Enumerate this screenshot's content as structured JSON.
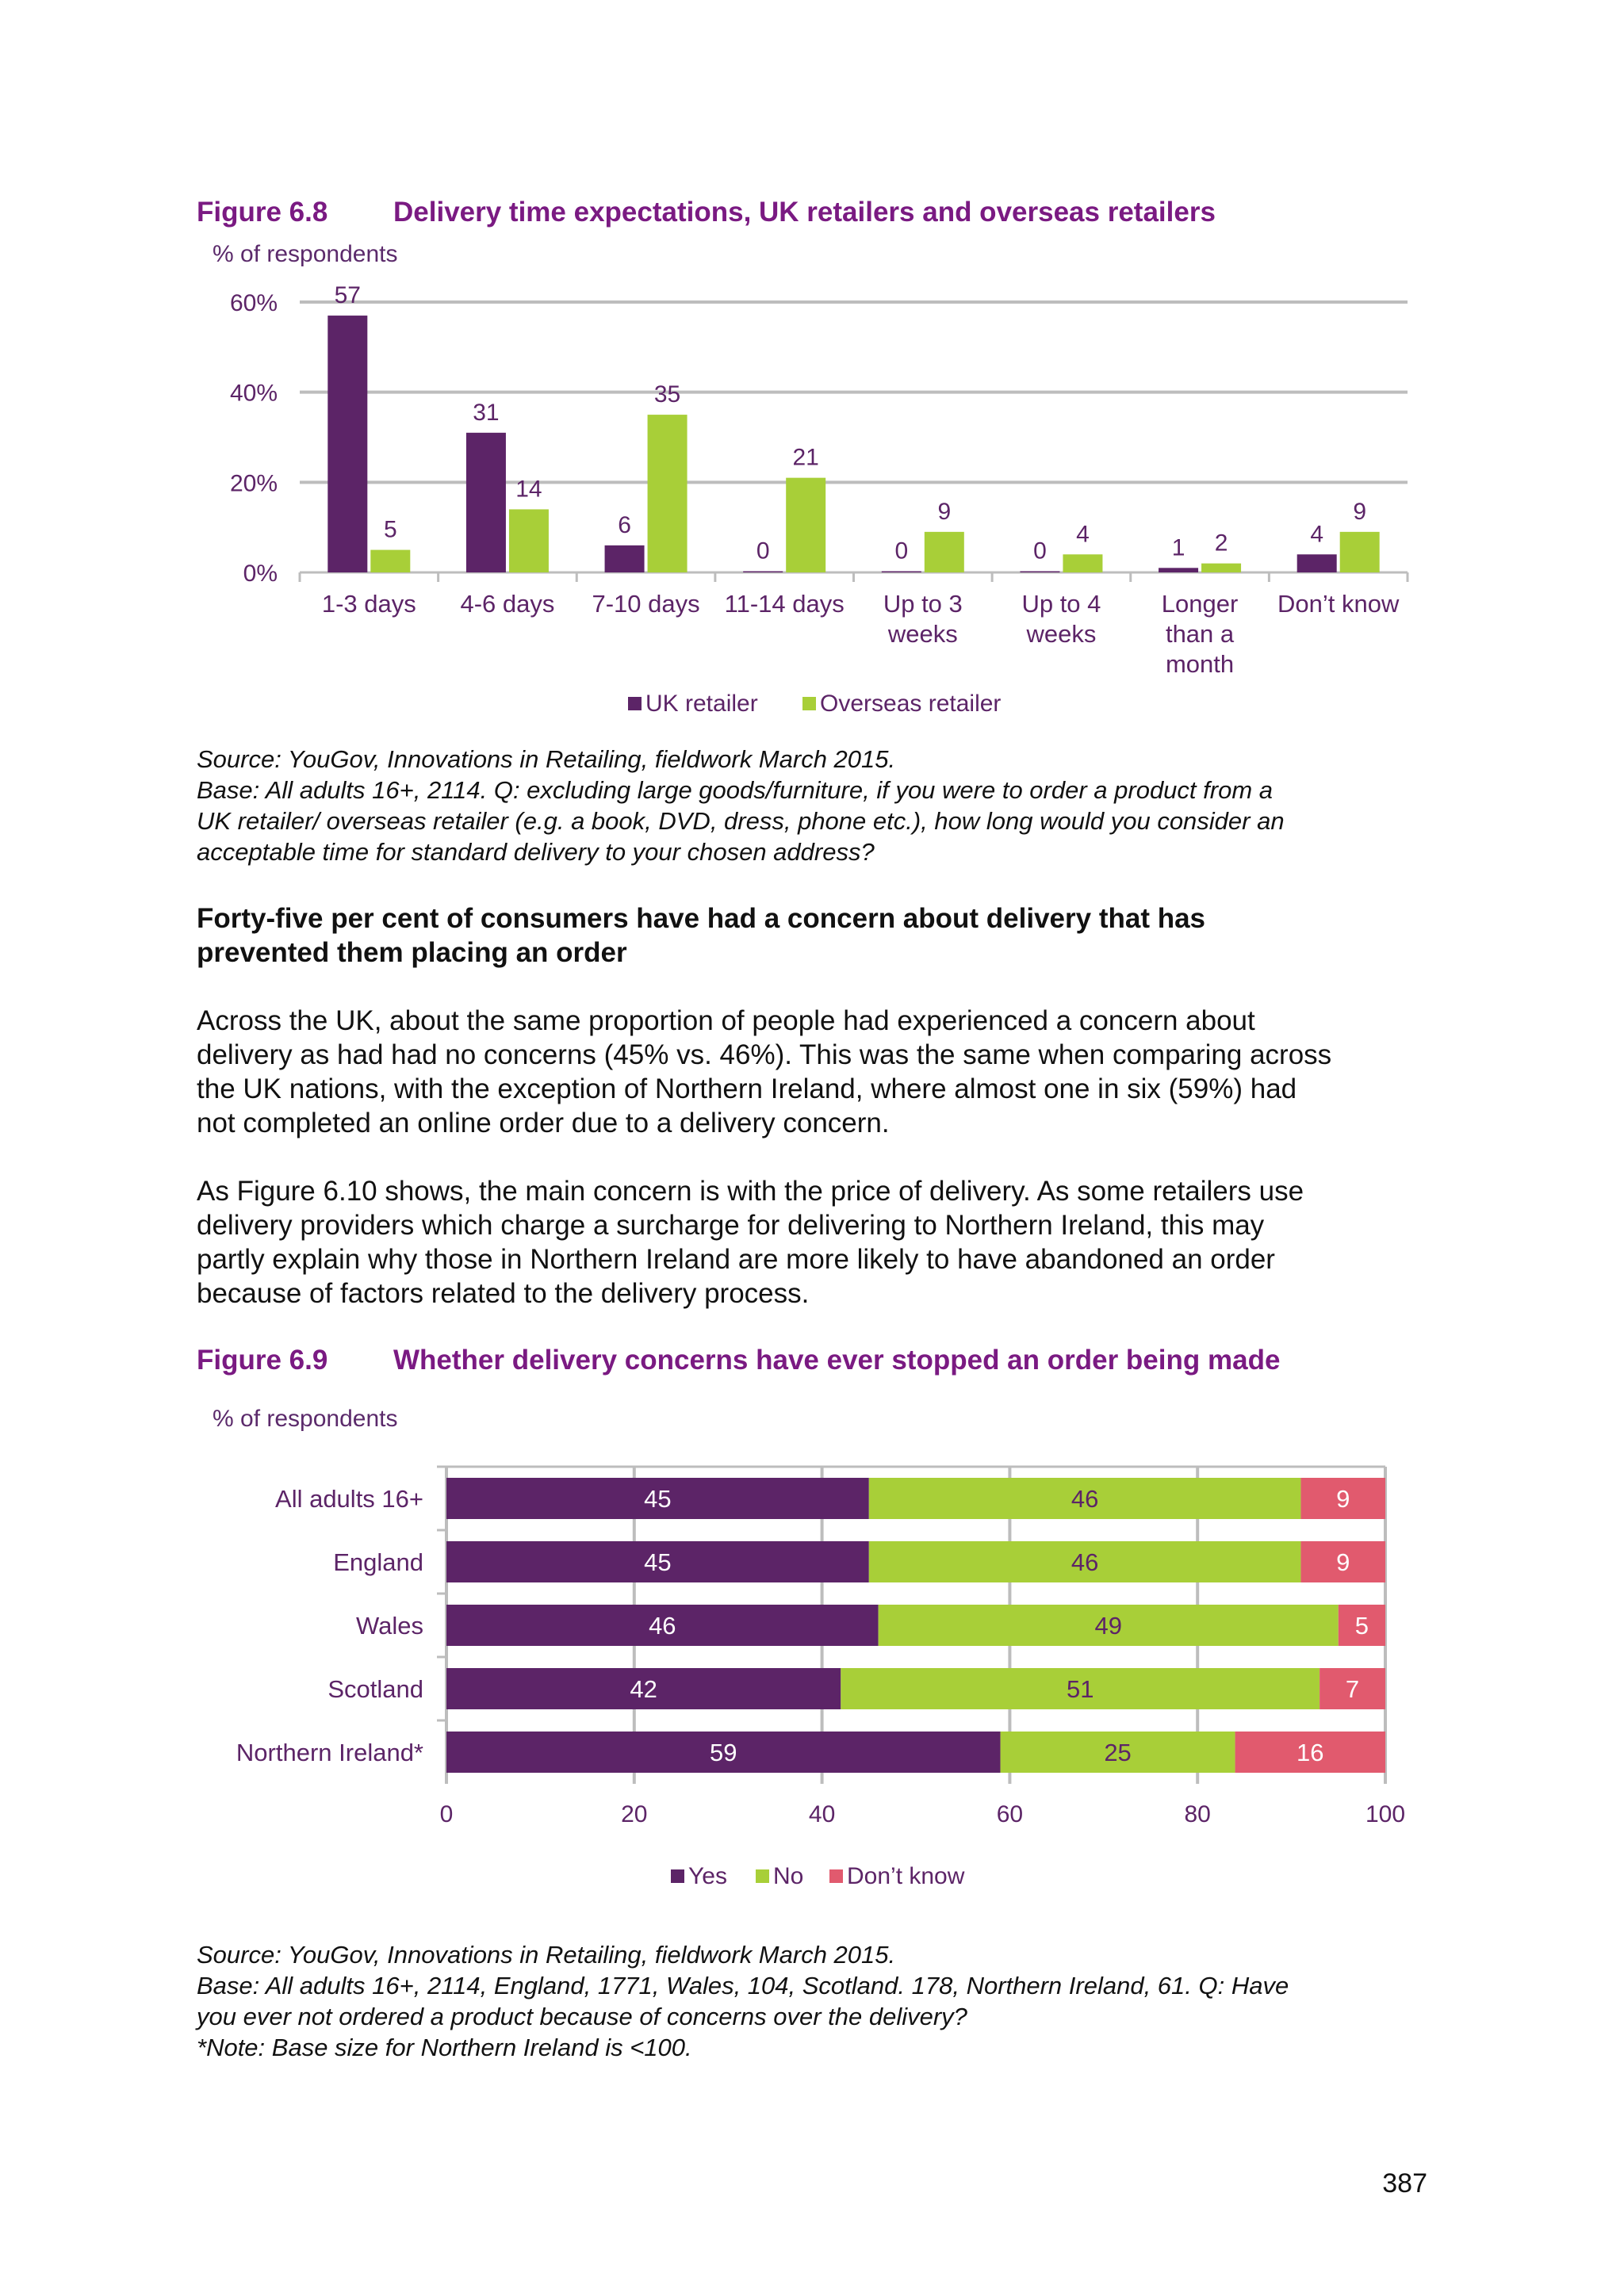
{
  "figure_6_8": {
    "number": "Figure 6.8",
    "title": "Delivery time expectations, UK retailers and overseas retailers",
    "unit": "% of respondents",
    "source": [
      "Source: YouGov, Innovations in Retailing, fieldwork March 2015.",
      "Base: All adults 16+, 2114. Q: excluding large goods/furniture, if you were to order a product from a",
      "UK retailer/ overseas retailer (e.g. a book, DVD, dress, phone etc.), how long would you consider an",
      "acceptable time for standard delivery to your chosen address?"
    ]
  },
  "section": {
    "heading": [
      "Forty-five per cent of consumers have had a concern about delivery that has",
      "prevented them placing an order"
    ],
    "paragraph1": [
      "Across the UK, about the same proportion of people had experienced a concern about",
      "delivery as had had no concerns (45% vs. 46%). This was the same when comparing across",
      "the UK nations, with the exception of Northern Ireland, where almost one in six (59%) had",
      "not completed an online order due to a delivery concern."
    ],
    "paragraph2": [
      "As Figure 6.10 shows, the main concern is with the price of delivery. As some retailers use",
      "delivery providers which charge a surcharge for delivering to Northern Ireland, this may",
      "partly explain why those in Northern Ireland are more likely to have abandoned an order",
      "because of factors related to the delivery process."
    ]
  },
  "figure_6_9": {
    "number": "Figure 6.9",
    "title": "Whether delivery concerns have ever stopped an order being made",
    "unit": "% of respondents",
    "source": [
      "Source: YouGov, Innovations in Retailing, fieldwork March 2015.",
      "Base: All adults 16+, 2114, England, 1771, Wales, 104, Scotland. 178, Northern Ireland, 61. Q: Have",
      "you ever not ordered a product because of concerns over the delivery?",
      "*Note: Base size for Northern Ireland is <100."
    ]
  },
  "page_number": "387",
  "chart_data": [
    {
      "type": "bar",
      "categories": [
        [
          "1-3 days"
        ],
        [
          "4-6 days"
        ],
        [
          "7-10 days"
        ],
        [
          "11-14 days"
        ],
        [
          "Up to 3",
          "weeks"
        ],
        [
          "Up to 4",
          "weeks"
        ],
        [
          "Longer",
          "than a",
          "month"
        ],
        [
          "Don’t know"
        ]
      ],
      "series": [
        {
          "name": "UK retailer",
          "color": "#5c2467",
          "values": [
            57,
            31,
            6,
            0,
            0,
            0,
            1,
            4
          ]
        },
        {
          "name": "Overseas retailer",
          "color": "#a8cf38",
          "values": [
            5,
            14,
            35,
            21,
            9,
            4,
            2,
            9
          ]
        }
      ],
      "ylim": [
        0,
        60
      ],
      "yticks": [
        "0%",
        "20%",
        "40%",
        "60%"
      ],
      "grid": true,
      "legend": "bottom",
      "label_color": "#5c2467"
    },
    {
      "type": "bar",
      "orientation": "horizontal",
      "stacked": true,
      "categories": [
        "All adults 16+",
        "England",
        "Wales",
        "Scotland",
        "Northern Ireland*"
      ],
      "series": [
        {
          "name": "Yes",
          "color": "#5c2467",
          "label_color": "#ffffff",
          "values": [
            45,
            45,
            46,
            42,
            59
          ]
        },
        {
          "name": "No",
          "color": "#a8cf38",
          "label_color": "#5c2467",
          "values": [
            46,
            46,
            49,
            51,
            25
          ]
        },
        {
          "name": "Don’t know",
          "color": "#e15a6e",
          "label_color": "#ffffff",
          "values": [
            9,
            9,
            5,
            7,
            16
          ]
        }
      ],
      "xlim": [
        0,
        100
      ],
      "xticks": [
        "0",
        "20",
        "40",
        "60",
        "80",
        "100"
      ],
      "grid": true,
      "legend": "bottom",
      "label_color": "#5c2467"
    }
  ]
}
